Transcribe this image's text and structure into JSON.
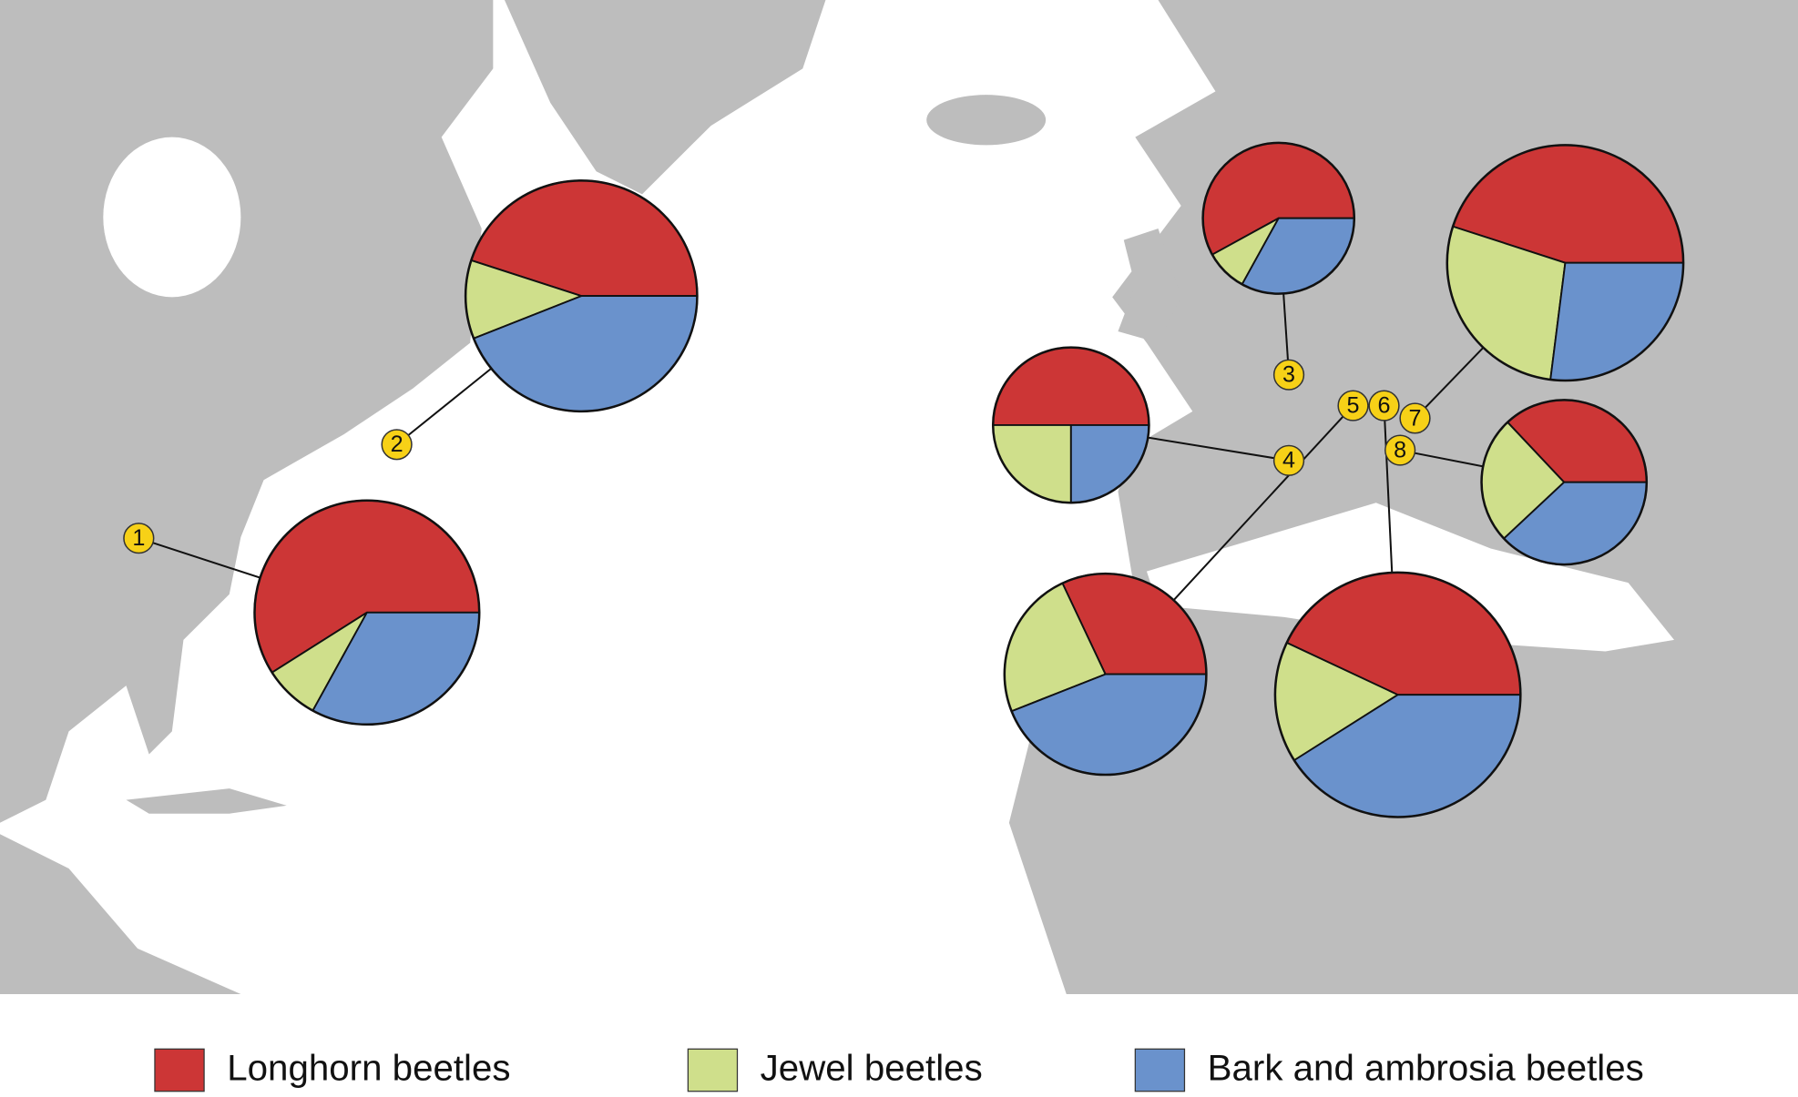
{
  "chart_data": {
    "type": "pie",
    "categories": [
      "1",
      "2",
      "3",
      "4",
      "5",
      "6",
      "7",
      "8"
    ],
    "series": [
      {
        "name": "Longhorn beetles",
        "color": "#cc3636",
        "values": [
          59,
          45,
          58,
          50,
          32,
          43,
          45,
          37
        ]
      },
      {
        "name": "Jewel beetles",
        "color": "#cfdf8b",
        "values": [
          8,
          11,
          9,
          25,
          24,
          16,
          28,
          25
        ]
      },
      {
        "name": "Bark and ambrosia beetles",
        "color": "#6a92cc",
        "values": [
          33,
          44,
          33,
          25,
          44,
          41,
          27,
          38
        ]
      }
    ]
  }
}
